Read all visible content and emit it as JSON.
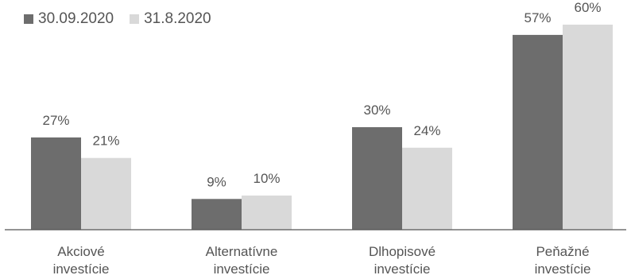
{
  "chart_data": {
    "type": "bar",
    "categories": [
      [
        "Akciové",
        "investície"
      ],
      [
        "Alternatívne",
        "investície"
      ],
      [
        "Dlhopisové",
        "investície"
      ],
      [
        "Peňažné",
        "investície"
      ]
    ],
    "series": [
      {
        "name": "30.09.2020",
        "color": "#6d6d6d",
        "values": [
          27,
          9,
          30,
          57
        ],
        "labels": [
          "27%",
          "9%",
          "30%",
          "57%"
        ]
      },
      {
        "name": "31.8.2020",
        "color": "#d9d9d9",
        "values": [
          21,
          10,
          24,
          60
        ],
        "labels": [
          "21%",
          "10%",
          "24%",
          "60%"
        ]
      }
    ],
    "ylim": [
      0,
      65
    ],
    "grid": false,
    "legend_position": "top-left"
  }
}
